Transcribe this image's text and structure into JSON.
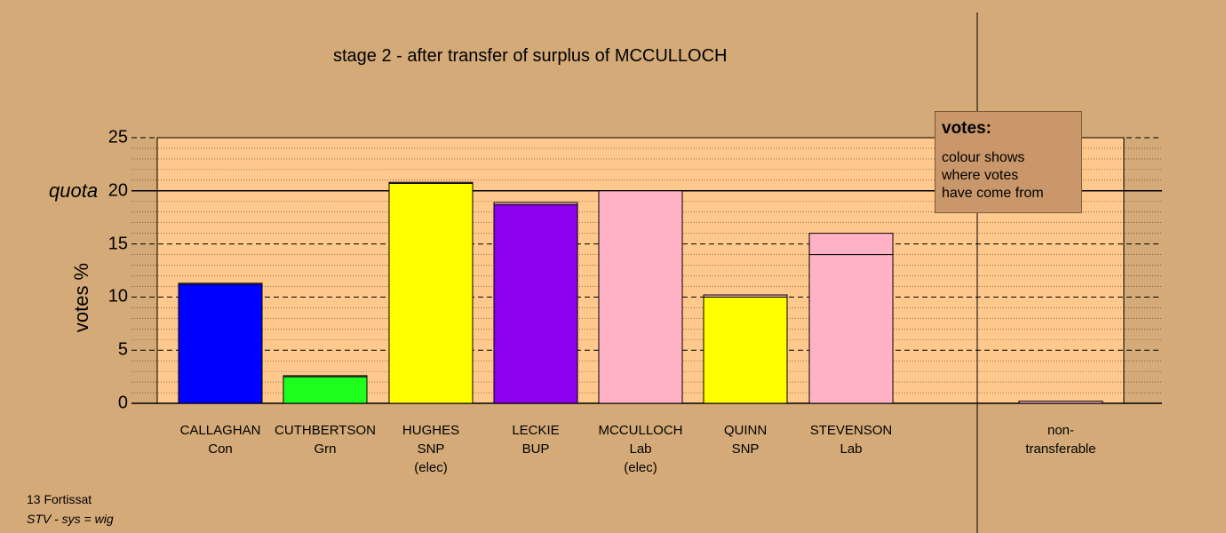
{
  "title": "stage 2 - after transfer of surplus of MCCULLOCH",
  "chart_data": {
    "type": "bar",
    "stacked": true,
    "title": "stage 2 - after transfer of surplus of MCCULLOCH",
    "ylabel": "votes %",
    "ylim": [
      0,
      25
    ],
    "yticks": [
      0,
      5,
      10,
      15,
      20,
      25
    ],
    "quota": {
      "label": "quota",
      "value": 20
    },
    "grid": true,
    "candidates": [
      {
        "name": "CALLAGHAN",
        "party": "Con",
        "status": "",
        "segments": [
          {
            "value": 11.2,
            "color": "#0000ff"
          },
          {
            "value": 0.1,
            "color": "#ffb2c6"
          }
        ]
      },
      {
        "name": "CUTHBERTSON",
        "party": "Grn",
        "status": "",
        "segments": [
          {
            "value": 2.5,
            "color": "#1eff1e"
          },
          {
            "value": 0.1,
            "color": "#ffb2c6"
          }
        ]
      },
      {
        "name": "HUGHES",
        "party": "SNP",
        "status": "(elec)",
        "segments": [
          {
            "value": 20.7,
            "color": "#ffff00"
          },
          {
            "value": 0.1,
            "color": "#ffb2c6"
          }
        ]
      },
      {
        "name": "LECKIE",
        "party": "BUP",
        "status": "",
        "segments": [
          {
            "value": 18.7,
            "color": "#8b00ee"
          },
          {
            "value": 0.2,
            "color": "#ffb2c6"
          }
        ]
      },
      {
        "name": "MCCULLOCH",
        "party": "Lab",
        "status": "(elec)",
        "segments": [
          {
            "value": 20.0,
            "color": "#ffb2c6"
          }
        ]
      },
      {
        "name": "QUINN",
        "party": "SNP",
        "status": "",
        "segments": [
          {
            "value": 10.0,
            "color": "#ffff00"
          },
          {
            "value": 0.2,
            "color": "#ffb2c6"
          }
        ]
      },
      {
        "name": "STEVENSON",
        "party": "Lab",
        "status": "",
        "segments": [
          {
            "value": 14.0,
            "color": "#ffb2c6"
          },
          {
            "value": 2.0,
            "color": "#ffb2c6"
          }
        ]
      }
    ],
    "non_transferable": {
      "label_lines": [
        "non-",
        "transferable"
      ],
      "segments": [
        {
          "value": 0.2,
          "color": "#ffb2c6"
        }
      ]
    }
  },
  "legend": {
    "title": "votes:",
    "lines": [
      "colour shows",
      "where votes",
      "have come from"
    ]
  },
  "footer": {
    "line1": "13 Fortissat",
    "line2": "STV - sys = wig"
  },
  "colors": {
    "background": "#d4aa78",
    "plot_area": "#ffc88c",
    "legend_box": "#c9976a"
  }
}
